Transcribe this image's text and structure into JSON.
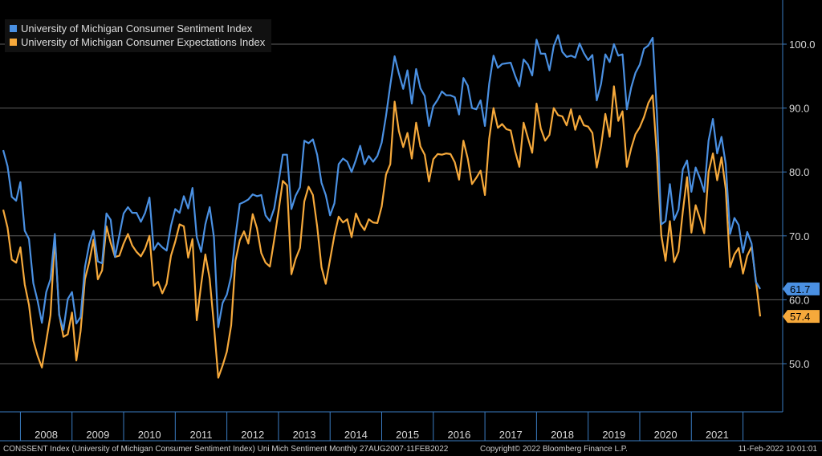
{
  "chart_data": {
    "type": "line",
    "x_range": [
      "2007-09",
      "2022-02"
    ],
    "x_ticks": [
      "2008",
      "2009",
      "2010",
      "2011",
      "2012",
      "2013",
      "2014",
      "2015",
      "2016",
      "2017",
      "2018",
      "2019",
      "2020",
      "2021"
    ],
    "y_ticks": [
      "50.0",
      "60.0",
      "70.0",
      "80.0",
      "90.0",
      "100.0"
    ],
    "ylim": [
      43,
      106
    ],
    "grid": true,
    "legend_position": "top-left",
    "series": [
      {
        "name": "University of Michigan Consumer Sentiment Index",
        "color": "#4a90e2",
        "last_label": "61.7",
        "values": [
          83.4,
          80.9,
          76.1,
          75.5,
          78.4,
          70.8,
          69.5,
          62.6,
          59.8,
          56.4,
          61.2,
          63.2,
          70.3,
          57.6,
          55.3,
          60.1,
          61.2,
          56.3,
          57.3,
          65.1,
          68.7,
          70.8,
          66.0,
          65.7,
          73.5,
          72.5,
          66.7,
          70.1,
          73.5,
          74.5,
          73.6,
          73.6,
          72.2,
          73.6,
          76.0,
          67.8,
          68.9,
          68.2,
          67.7,
          71.6,
          74.2,
          73.6,
          76.2,
          74.3,
          77.5,
          69.8,
          67.5,
          71.8,
          74.5,
          69.8,
          55.7,
          59.5,
          60.8,
          63.7,
          69.9,
          75.0,
          75.3,
          75.7,
          76.5,
          76.2,
          76.4,
          73.2,
          72.3,
          74.3,
          78.3,
          82.7,
          82.7,
          74.2,
          76.3,
          77.6,
          84.9,
          84.5,
          85.1,
          82.7,
          78.3,
          76.4,
          73.2,
          75.1,
          81.2,
          82.1,
          81.6,
          80.0,
          81.9,
          84.1,
          81.2,
          82.5,
          81.6,
          82.5,
          84.6,
          88.8,
          93.6,
          98.1,
          95.4,
          93.0,
          95.9,
          90.7,
          96.1,
          93.1,
          91.9,
          87.2,
          90.3,
          91.3,
          92.6,
          92.0,
          92.0,
          91.7,
          89.0,
          94.7,
          93.5,
          90.0,
          89.8,
          91.2,
          87.2,
          93.8,
          98.2,
          96.3,
          96.9,
          97.0,
          97.1,
          95.1,
          93.4,
          97.6,
          96.8,
          95.1,
          100.7,
          98.5,
          98.5,
          95.9,
          99.7,
          101.4,
          98.8,
          98.0,
          98.2,
          97.9,
          100.1,
          98.6,
          97.5,
          98.3,
          91.2,
          93.8,
          98.4,
          97.2,
          100.0,
          98.2,
          98.4,
          89.8,
          93.2,
          95.5,
          96.8,
          99.3,
          99.8,
          101.0,
          89.1,
          71.8,
          72.3,
          78.1,
          72.5,
          74.1,
          80.4,
          81.8,
          76.9,
          80.7,
          79.0,
          76.9,
          84.9,
          88.3,
          82.9,
          85.5,
          81.2,
          70.3,
          72.8,
          71.7,
          67.4,
          70.6,
          68.8,
          62.8,
          61.7
        ]
      },
      {
        "name": "University of Michigan Consumer Expectations Index",
        "color": "#f6a93b",
        "last_label": "57.4",
        "values": [
          74.1,
          71.3,
          66.3,
          65.8,
          68.2,
          62.4,
          59.2,
          53.6,
          51.2,
          49.4,
          53.5,
          57.6,
          69.8,
          57.8,
          54.2,
          54.6,
          58.0,
          50.5,
          55.1,
          63.2,
          65.9,
          69.4,
          63.2,
          64.6,
          71.5,
          68.9,
          66.7,
          66.9,
          68.8,
          70.3,
          68.5,
          67.5,
          66.8,
          68.0,
          70.0,
          62.2,
          62.8,
          61.0,
          62.5,
          66.9,
          69.1,
          71.8,
          71.5,
          66.6,
          69.5,
          56.8,
          62.3,
          67.1,
          63.3,
          56.0,
          47.8,
          49.7,
          51.9,
          56.0,
          66.1,
          69.3,
          70.7,
          68.8,
          73.4,
          71.2,
          67.3,
          65.8,
          65.2,
          69.4,
          73.8,
          78.6,
          77.9,
          64.0,
          66.4,
          68.1,
          75.4,
          77.7,
          76.4,
          71.5,
          65.1,
          62.5,
          66.3,
          70.1,
          73.0,
          72.1,
          72.6,
          69.8,
          73.5,
          71.9,
          70.9,
          72.6,
          72.1,
          72.0,
          74.6,
          79.6,
          81.2,
          91.0,
          86.4,
          83.9,
          86.1,
          82.1,
          87.7,
          84.0,
          82.7,
          78.5,
          82.0,
          82.8,
          82.7,
          82.9,
          82.8,
          81.5,
          78.8,
          84.9,
          82.1,
          78.1,
          79.1,
          80.2,
          76.4,
          85.2,
          90.0,
          86.9,
          87.5,
          86.7,
          86.5,
          83.3,
          80.8,
          87.7,
          85.3,
          83.0,
          90.7,
          86.8,
          84.9,
          85.8,
          90.0,
          88.9,
          88.7,
          87.3,
          89.8,
          86.6,
          88.8,
          87.3,
          87.1,
          86.1,
          80.7,
          84.1,
          89.1,
          85.5,
          93.4,
          88.0,
          89.5,
          80.8,
          83.7,
          85.9,
          87.0,
          88.6,
          90.8,
          92.0,
          82.4,
          70.1,
          66.1,
          72.3,
          65.9,
          67.5,
          73.8,
          79.2,
          70.5,
          74.8,
          72.7,
          70.4,
          80.0,
          82.9,
          78.7,
          82.3,
          77.3,
          65.1,
          67.1,
          68.1,
          64.1,
          66.9,
          68.3,
          63.1,
          57.4
        ]
      }
    ]
  },
  "footer": {
    "left": "CONSSENT Index (University of Michigan Consumer Sentiment Index) Uni Mich Sentiment  Monthly 27AUG2007-11FEB2022",
    "center": "Copyright© 2022 Bloomberg Finance L.P.",
    "right": "11-Feb-2022 10:01:01"
  },
  "colors": {
    "background": "#000000",
    "grid": "#5f5f5f",
    "axis": "#3a7cc2",
    "label_text": "#d8d8d8"
  }
}
